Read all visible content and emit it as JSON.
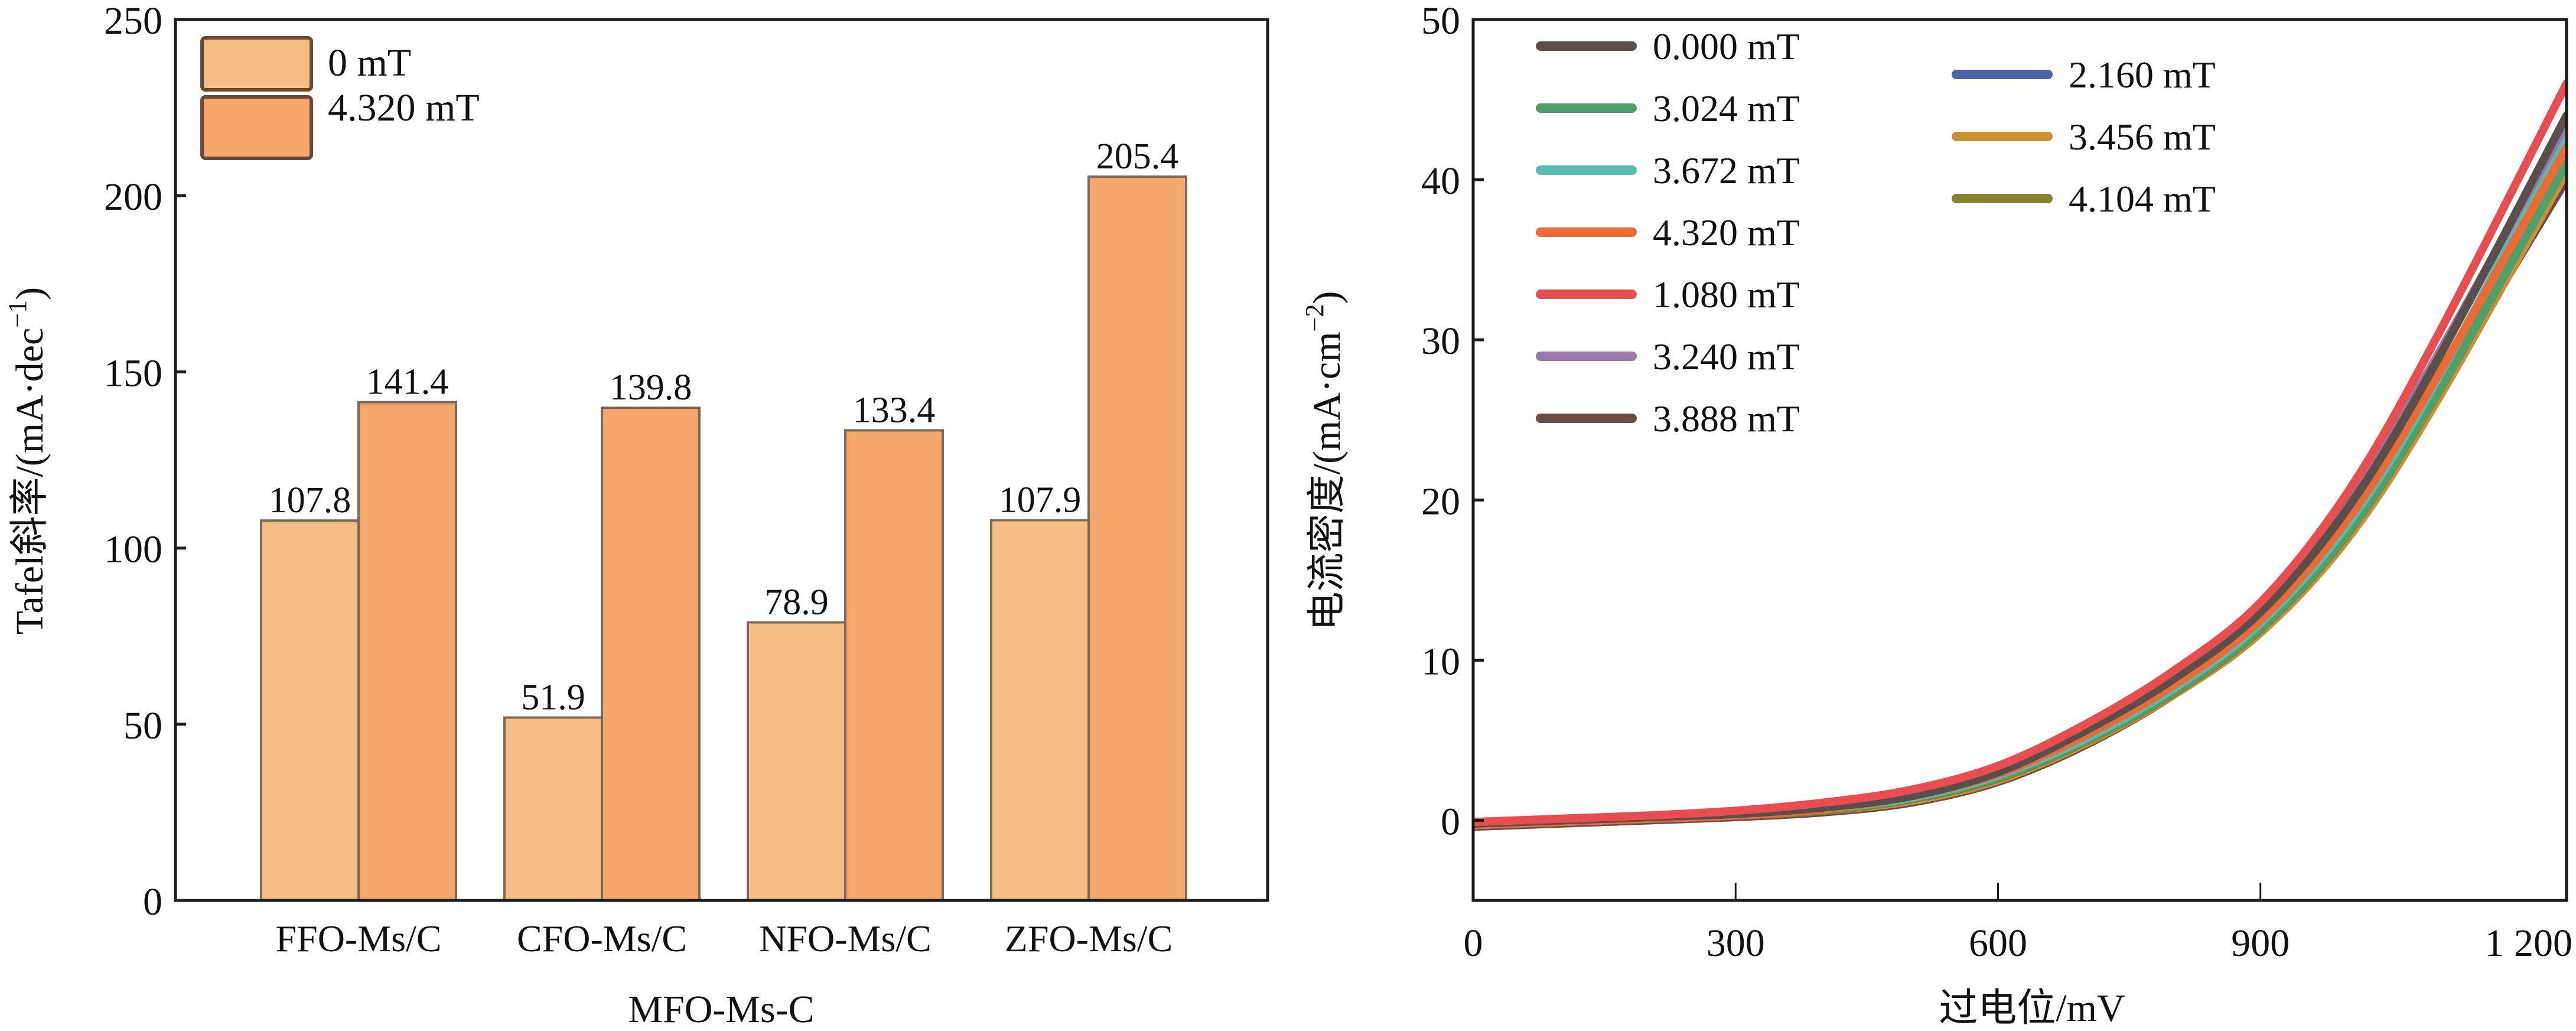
{
  "chart_data": [
    {
      "type": "bar",
      "title": "",
      "xlabel": "MFO-Ms-C",
      "ylabel": "Tafel斜率/(mA·dec⁻¹)",
      "ylabel_main": "Tafel斜率/(mA·dec",
      "ylabel_sup": "−1",
      "ylabel_tail": ")",
      "ylim": [
        0,
        250
      ],
      "yticks": [
        0,
        50,
        100,
        150,
        200,
        250
      ],
      "grid": false,
      "legend_position": "top-left",
      "categories": [
        "FFO-Ms/C",
        "CFO-Ms/C",
        "NFO-Ms/C",
        "ZFO-Ms/C"
      ],
      "series": [
        {
          "name": "0 mT",
          "color": "#F6BE84",
          "values": [
            107.8,
            51.9,
            78.9,
            107.9
          ]
        },
        {
          "name": "4.320 mT",
          "color": "#F4A66D",
          "values": [
            141.4,
            139.8,
            133.4,
            205.4
          ]
        }
      ]
    },
    {
      "type": "line",
      "title": "",
      "xlabel": "过电位/mV",
      "ylabel": "电流密度/(mA·cm⁻²)",
      "ylabel_main": "电流密度/(mA·cm",
      "ylabel_sup": "−2",
      "ylabel_tail": ")",
      "xlim": [
        0,
        1250
      ],
      "ylim": [
        -5,
        50
      ],
      "xticks": [
        0,
        300,
        600,
        900,
        1200
      ],
      "xtick_labels": [
        "0",
        "300",
        "600",
        "900",
        "1 200"
      ],
      "yticks": [
        0,
        10,
        20,
        30,
        40,
        50
      ],
      "grid": false,
      "legend_position": "top-left (two columns)",
      "x": [
        0,
        100,
        200,
        300,
        400,
        500,
        600,
        700,
        800,
        900,
        1000,
        1100,
        1250
      ],
      "series": [
        {
          "name": "0.000 mT",
          "color": "#5A4E4A",
          "values": [
            -0.2,
            0.0,
            0.2,
            0.4,
            0.8,
            1.5,
            3.0,
            5.6,
            8.8,
            13.0,
            19.5,
            28.5,
            44.0
          ]
        },
        {
          "name": "3.024 mT",
          "color": "#4DA06A",
          "values": [
            -0.3,
            -0.1,
            0.1,
            0.3,
            0.7,
            1.4,
            2.7,
            5.0,
            8.0,
            12.0,
            18.0,
            26.5,
            41.0
          ]
        },
        {
          "name": "3.672 mT",
          "color": "#5BBAB0",
          "values": [
            -0.3,
            -0.1,
            0.1,
            0.3,
            0.7,
            1.4,
            2.8,
            5.1,
            8.2,
            12.3,
            18.5,
            27.3,
            43.0
          ]
        },
        {
          "name": "4.320 mT",
          "color": "#EC6A35",
          "values": [
            -0.3,
            -0.1,
            0.1,
            0.3,
            0.7,
            1.5,
            2.9,
            5.3,
            8.4,
            12.5,
            18.8,
            27.5,
            42.0
          ]
        },
        {
          "name": "1.080 mT",
          "color": "#E84E50",
          "values": [
            -0.1,
            0.1,
            0.3,
            0.6,
            1.1,
            1.9,
            3.4,
            6.0,
            9.3,
            13.6,
            20.5,
            30.0,
            46.0
          ]
        },
        {
          "name": "3.240 mT",
          "color": "#9B76A9",
          "values": [
            -0.2,
            0.0,
            0.2,
            0.5,
            0.9,
            1.7,
            3.1,
            5.7,
            9.0,
            13.3,
            19.8,
            28.8,
            43.5
          ]
        },
        {
          "name": "3.888 mT",
          "color": "#6E4A47",
          "values": [
            -0.4,
            -0.2,
            0.0,
            0.2,
            0.5,
            1.1,
            2.4,
            4.7,
            7.8,
            11.8,
            17.8,
            26.5,
            40.0
          ]
        },
        {
          "name": "2.160 mT",
          "color": "#4C64A8",
          "values": [
            -0.2,
            0.0,
            0.2,
            0.5,
            0.9,
            1.7,
            3.1,
            5.6,
            8.9,
            13.2,
            19.6,
            28.6,
            43.8
          ]
        },
        {
          "name": "3.456 mT",
          "color": "#C99035",
          "values": [
            -0.3,
            -0.1,
            0.1,
            0.3,
            0.6,
            1.2,
            2.5,
            4.8,
            7.8,
            11.7,
            17.6,
            26.0,
            40.5
          ]
        },
        {
          "name": "4.104 mT",
          "color": "#868234",
          "values": [
            -0.3,
            -0.1,
            0.1,
            0.3,
            0.6,
            1.3,
            2.6,
            4.9,
            7.9,
            11.9,
            17.9,
            26.4,
            41.0
          ]
        }
      ]
    }
  ]
}
